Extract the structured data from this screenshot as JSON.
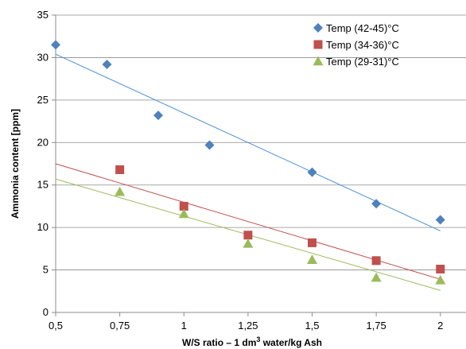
{
  "chart_data": {
    "type": "scatter",
    "xlabel_main": "W/S ratio – 1 dm",
    "xlabel_sup": "3",
    "xlabel_end": " water/kg Ash",
    "ylabel": "Ammonia content [ppm]",
    "xlim": [
      0.5,
      2.1
    ],
    "ylim": [
      0,
      35
    ],
    "x_ticks": [
      0.5,
      0.75,
      1,
      1.25,
      1.5,
      1.75,
      2
    ],
    "x_tick_labels": [
      "0,5",
      "0,75",
      "1",
      "1,25",
      "1,5",
      "1,75",
      "2"
    ],
    "y_ticks": [
      0,
      5,
      10,
      15,
      20,
      25,
      30,
      35
    ],
    "y_tick_labels": [
      "0",
      "5",
      "10",
      "15",
      "20",
      "25",
      "30",
      "35"
    ],
    "grid": "horizontal",
    "legend_position": "top-right",
    "series": [
      {
        "name": "Temp (42-45)°C",
        "marker": "diamond",
        "color": "#4f81bd",
        "line_color": "#4a90d9",
        "x": [
          0.5,
          0.7,
          0.9,
          1.1,
          1.5,
          1.75,
          2.0
        ],
        "y": [
          31.5,
          29.2,
          23.2,
          19.7,
          16.5,
          12.8,
          10.9
        ],
        "trend": [
          [
            0.5,
            30.4
          ],
          [
            2.0,
            9.6
          ]
        ]
      },
      {
        "name": "Temp (34-36)°C",
        "marker": "square",
        "color": "#c0504d",
        "line_color": "#c0504d",
        "x": [
          0.75,
          1.0,
          1.25,
          1.5,
          1.75,
          2.0
        ],
        "y": [
          16.8,
          12.5,
          9.1,
          8.2,
          6.1,
          5.1
        ],
        "trend": [
          [
            0.5,
            17.5
          ],
          [
            2.0,
            3.9
          ]
        ]
      },
      {
        "name": "Temp (29-31)°C",
        "marker": "triangle",
        "color": "#9bbb59",
        "line_color": "#9bbb59",
        "x": [
          0.75,
          1.0,
          1.25,
          1.5,
          1.75,
          2.0
        ],
        "y": [
          14.2,
          11.6,
          8.1,
          6.2,
          4.1,
          3.8
        ],
        "trend": [
          [
            0.5,
            15.7
          ],
          [
            2.0,
            2.6
          ]
        ]
      }
    ]
  }
}
